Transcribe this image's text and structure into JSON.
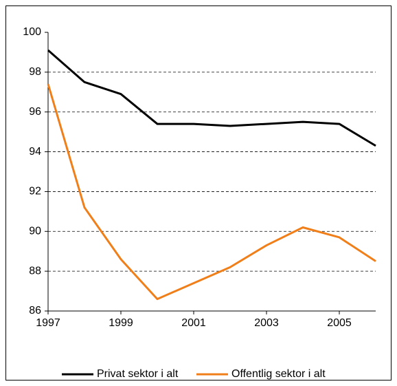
{
  "chart_data": {
    "type": "line",
    "x": [
      1997,
      1998,
      1999,
      2000,
      2001,
      2002,
      2003,
      2004,
      2005,
      2006
    ],
    "series": [
      {
        "name": "Privat sektor i alt",
        "color": "#000000",
        "values": [
          99.1,
          97.5,
          96.9,
          95.4,
          95.4,
          95.3,
          95.4,
          95.5,
          95.4,
          94.3
        ]
      },
      {
        "name": "Offentlig sektor i alt",
        "color": "#f07f1a",
        "values": [
          97.4,
          91.2,
          88.6,
          86.6,
          87.4,
          88.2,
          89.3,
          90.2,
          89.7,
          88.5
        ]
      }
    ],
    "xlim": [
      1997,
      2006
    ],
    "xticks": [
      1997,
      1999,
      2001,
      2003,
      2005
    ],
    "ylim": [
      86,
      100
    ],
    "yticks": [
      86,
      88,
      90,
      92,
      94,
      96,
      98,
      100
    ],
    "grid": true,
    "legend": "bottom"
  }
}
